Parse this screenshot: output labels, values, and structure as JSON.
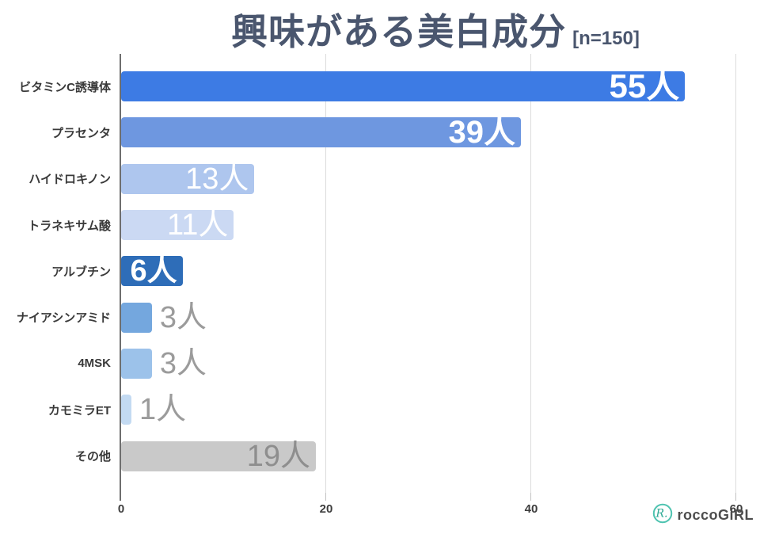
{
  "title": {
    "text": "興味がある美白成分",
    "sample_size": "[n=150]"
  },
  "chart_data": {
    "type": "bar",
    "orientation": "horizontal",
    "title": "興味がある美白成分 [n=150]",
    "xlabel": "",
    "ylabel": "",
    "xlim": [
      0,
      60
    ],
    "xticks": [
      0,
      20,
      40,
      60
    ],
    "grid": "vertical-light-gray",
    "categories": [
      "ビタミンC誘導体",
      "プラセンタ",
      "ハイドロキノン",
      "トラネキサム酸",
      "アルブチン",
      "ナイアシンアミド",
      "4MSK",
      "カモミラET",
      "その他"
    ],
    "values": [
      55,
      39,
      13,
      11,
      6,
      3,
      3,
      1,
      19
    ],
    "value_labels": [
      "55人",
      "39人",
      "13人",
      "11人",
      "6人",
      "3人",
      "3人",
      "1人",
      "19人"
    ],
    "bar_colors": [
      "#3d7be4",
      "#6e97e0",
      "#aec6ee",
      "#cbd9f3",
      "#2e6db8",
      "#74a7de",
      "#9cc2ea",
      "#c3daf2",
      "#c9c9c9"
    ],
    "value_label_placement": [
      "inside",
      "inside",
      "inside",
      "inside",
      "inside",
      "outside",
      "outside",
      "outside",
      "inside"
    ],
    "value_label_colors": [
      "#ffffff",
      "#ffffff",
      "#ffffff",
      "#ffffff",
      "#ffffff",
      "#9b9b9b",
      "#9b9b9b",
      "#9b9b9b",
      "#8e8e8e"
    ],
    "value_label_weights": [
      700,
      700,
      500,
      500,
      700,
      400,
      400,
      400,
      400
    ]
  },
  "axis": {
    "tick_labels": [
      "0",
      "20",
      "40",
      "60"
    ]
  },
  "footer": {
    "brand": "roccoGiRL",
    "brand_icon": "rocco-girl-logo-icon",
    "brand_color": "#4ec3b0"
  },
  "colors": {
    "title": "#4a566e",
    "category_label": "#3a3a3a",
    "axis_line": "#6e6e6e",
    "gridline": "#dcdcdc",
    "background": "#ffffff"
  }
}
